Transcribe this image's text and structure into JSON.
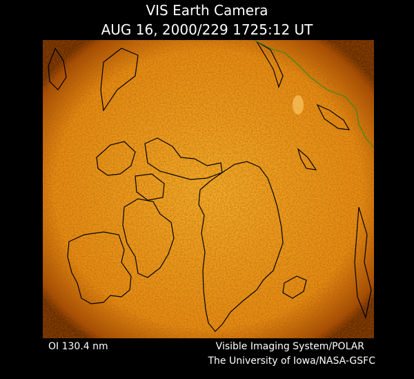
{
  "header": {
    "title": "VIS Earth Camera",
    "timestamp": "AUG 16, 2000/229 1725:12 UT"
  },
  "footer": {
    "filter": "OI 130.4 nm",
    "instrument": "Visible Imaging System/POLAR",
    "institution": "The University of Iowa/NASA-GSFC"
  }
}
